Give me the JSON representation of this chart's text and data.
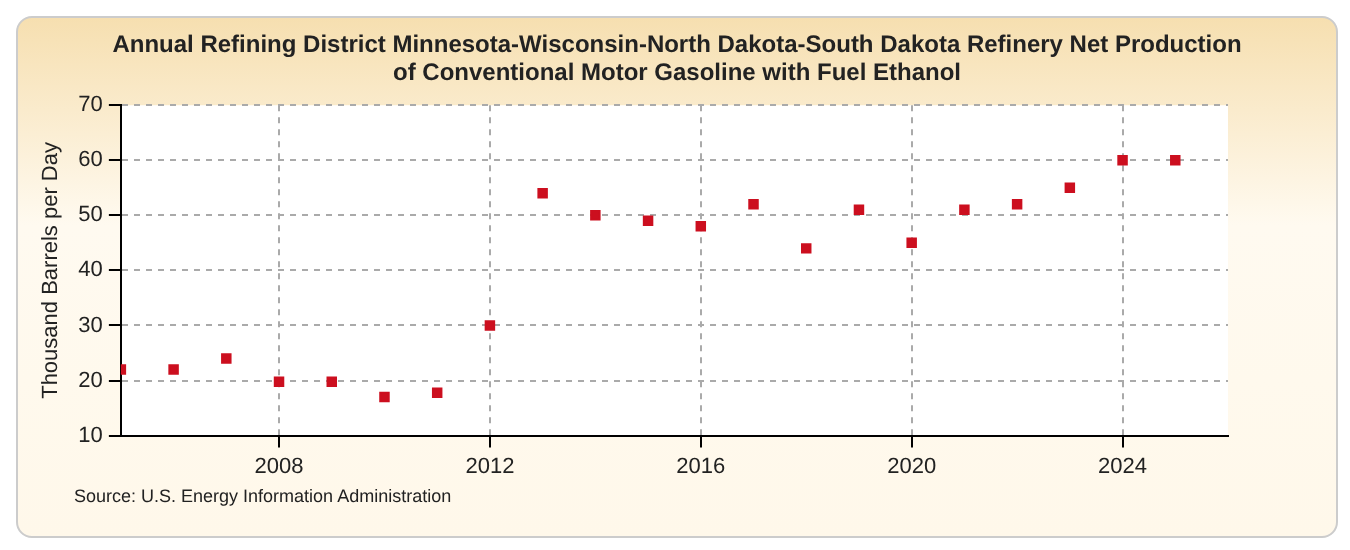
{
  "chart_data": {
    "type": "scatter",
    "title": "Annual Refining District Minnesota-Wisconsin-North Dakota-South Dakota Refinery Net Production of Conventional Motor Gasoline with Fuel Ethanol",
    "ylabel": "Thousand Barrels per Day",
    "x": [
      2005,
      2006,
      2007,
      2008,
      2009,
      2010,
      2011,
      2012,
      2013,
      2014,
      2015,
      2016,
      2017,
      2018,
      2019,
      2020,
      2021,
      2022,
      2023,
      2024,
      2025
    ],
    "series": [
      {
        "color": "#cc0f1f",
        "values": [
          22,
          22,
          24,
          19.8,
          19.8,
          17,
          17.8,
          30,
          54,
          50,
          49,
          48,
          52,
          44,
          51,
          45,
          51,
          52,
          55,
          60,
          60
        ]
      }
    ],
    "xlim": [
      2005,
      2026
    ],
    "xticks": [
      2008,
      2012,
      2016,
      2020,
      2024
    ],
    "ylim": [
      10,
      70
    ],
    "yticks": [
      10,
      20,
      30,
      40,
      50,
      60,
      70
    ],
    "grid": true,
    "legend": false,
    "marker": "square",
    "annotations": [
      "Source: U.S. Energy Information Administration"
    ]
  }
}
